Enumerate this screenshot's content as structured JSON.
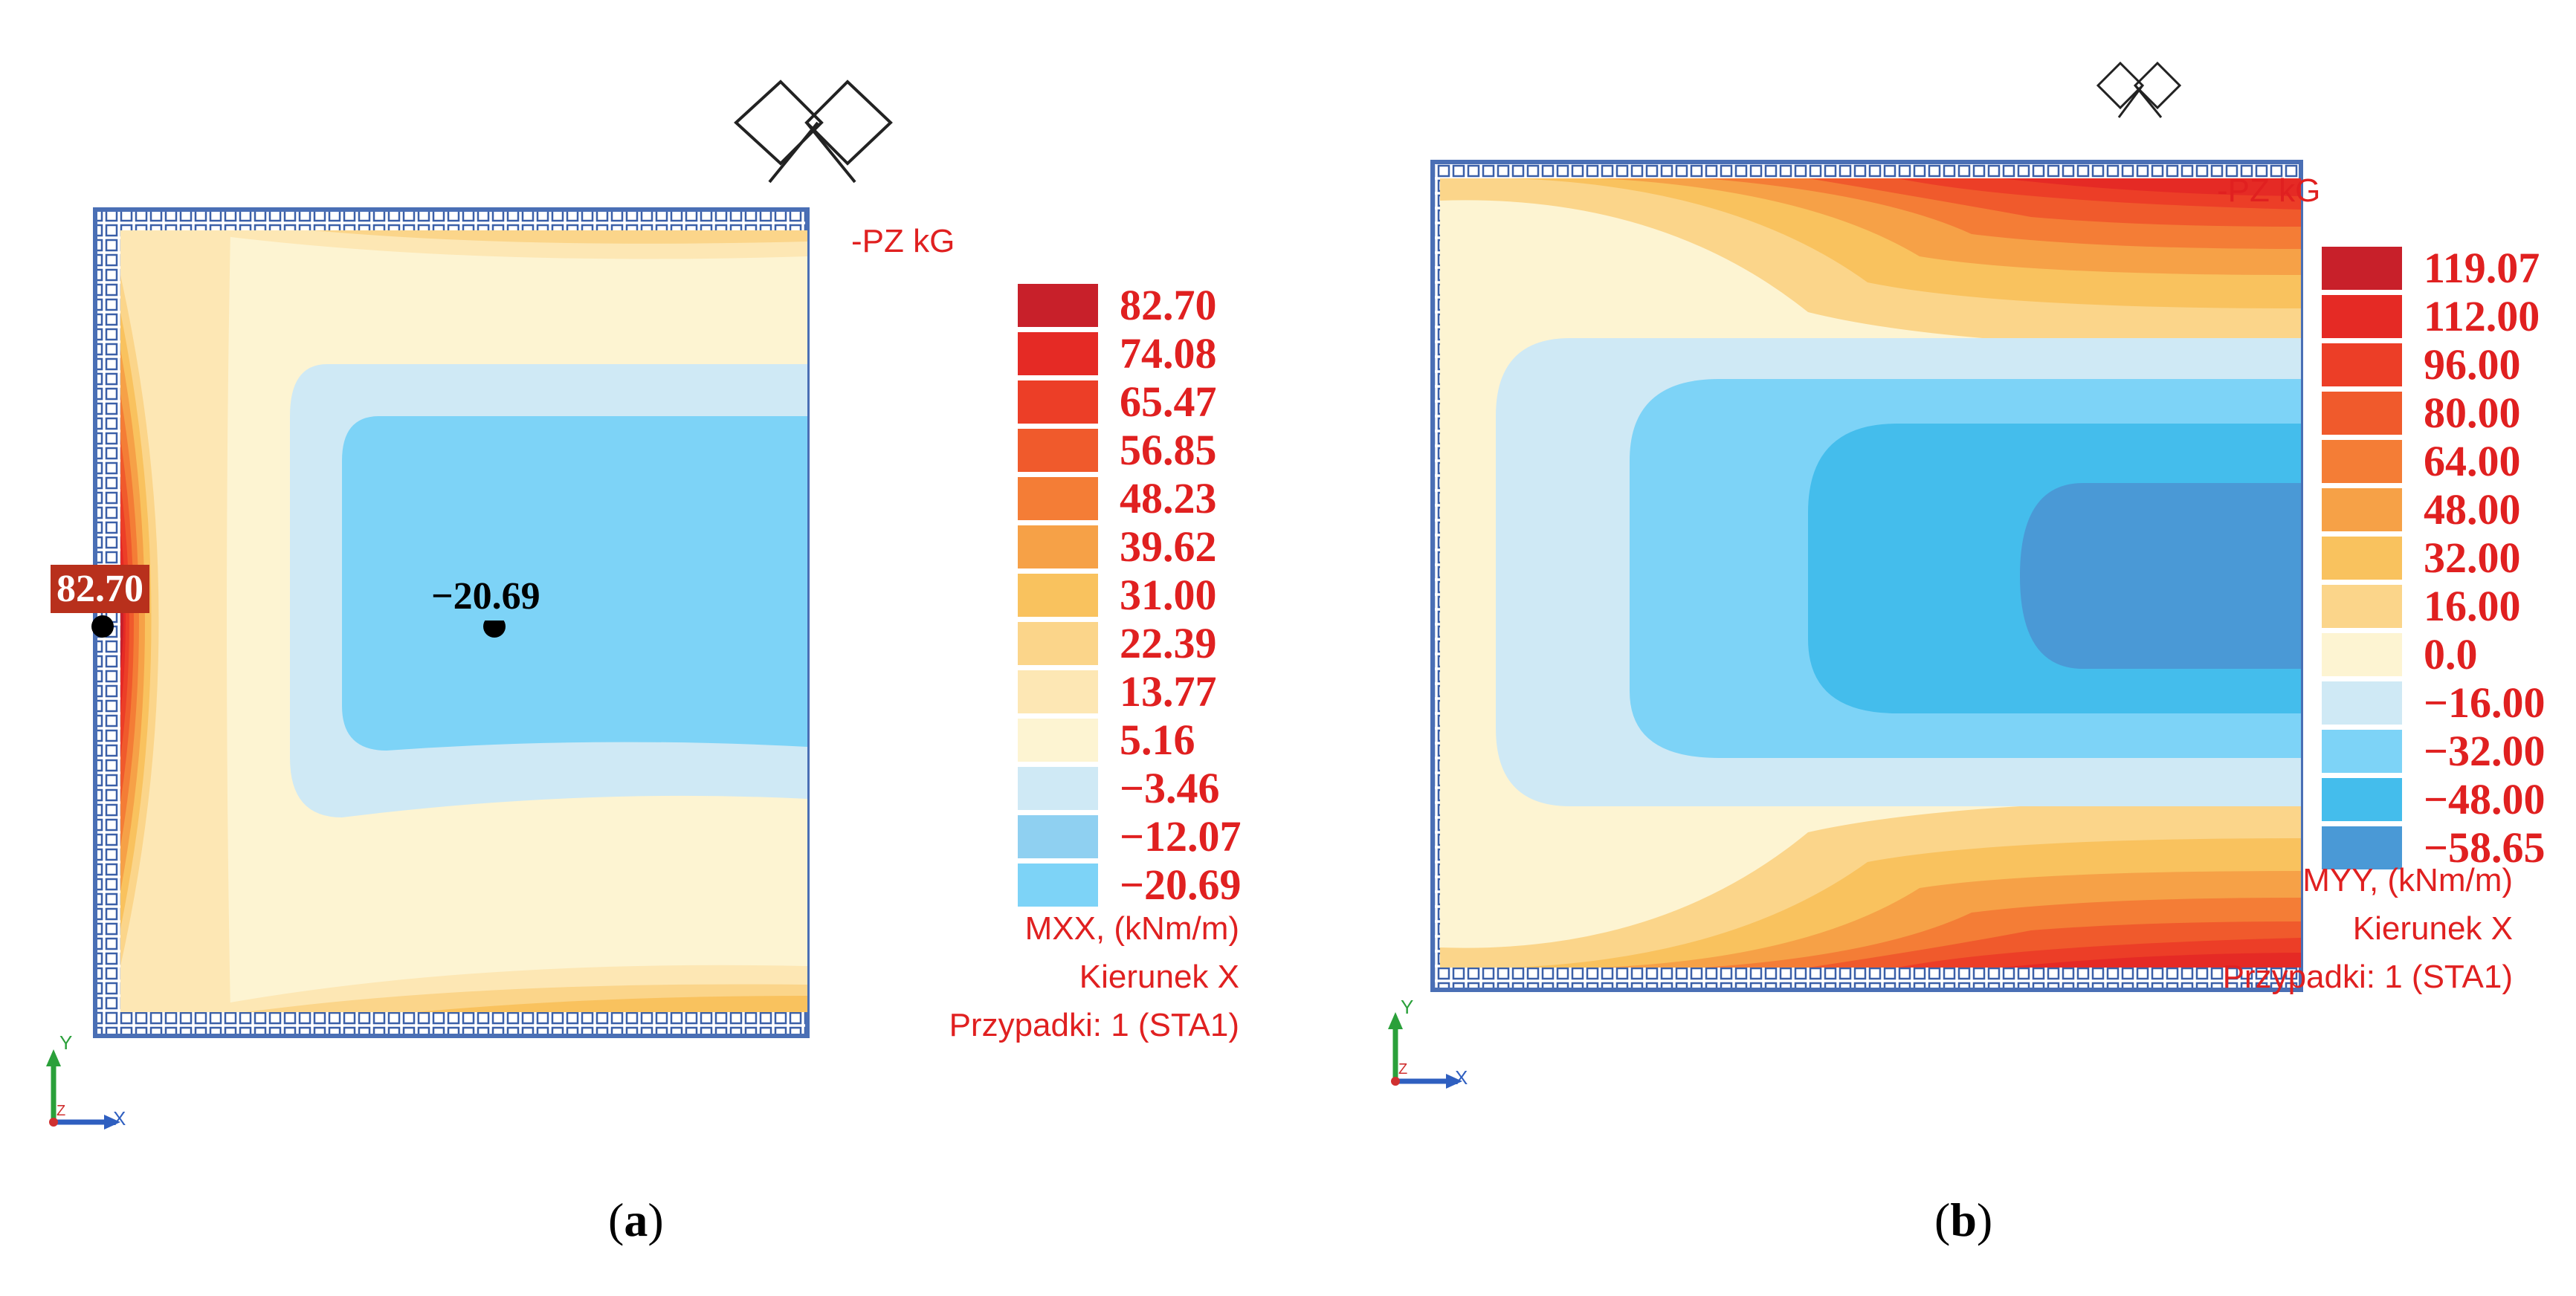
{
  "panels": {
    "a": {
      "header": "-PZ   kG",
      "legend": [
        "82.70",
        "74.08",
        "65.47",
        "56.85",
        "48.23",
        "39.62",
        "31.00",
        "22.39",
        "13.77",
        "5.16",
        "−3.46",
        "−12.07",
        "−20.69"
      ],
      "legend_colors": [
        "#c8202a",
        "#e52a25",
        "#ec3e27",
        "#f05a2c",
        "#f47d36",
        "#f6a147",
        "#f9c25e",
        "#fbd58a",
        "#fde7b4",
        "#fdf4d2",
        "#cfe9f5",
        "#8fd0f1",
        "#7dd3f7"
      ],
      "max_marker": "82.70",
      "min_marker": "−20.69",
      "footer": {
        "quantity": "MXX, (kNm/m)",
        "direction": "Kierunek X",
        "cases": "Przypadki: 1 (STA1)"
      },
      "axes": {
        "y": "Y",
        "x": "X",
        "z": "Z"
      },
      "caption_letter": "a"
    },
    "b": {
      "header": "-PZ   kG",
      "legend": [
        "119.07",
        "112.00",
        "96.00",
        "80.00",
        "64.00",
        "48.00",
        "32.00",
        "16.00",
        "0.0",
        "−16.00",
        "−32.00",
        "−48.00",
        "−58.65"
      ],
      "legend_colors": [
        "#c8202a",
        "#e52a25",
        "#ec3e27",
        "#f05a2c",
        "#f47d36",
        "#f6a147",
        "#f9c25e",
        "#fbd58a",
        "#fdf4d2",
        "#cfe9f5",
        "#7dd3f7",
        "#44bdec",
        "#4a99d6"
      ],
      "footer": {
        "quantity": "MYY, (kNm/m)",
        "direction": "Kierunek X",
        "cases": "Przypadki: 1 (STA1)"
      },
      "axes": {
        "y": "Y",
        "x": "X",
        "z": "Z"
      },
      "caption_letter": "b"
    }
  },
  "colors": {
    "label_red": "#e02020",
    "slab_border": "#4a6fb5",
    "support": "#3a5fa8"
  }
}
